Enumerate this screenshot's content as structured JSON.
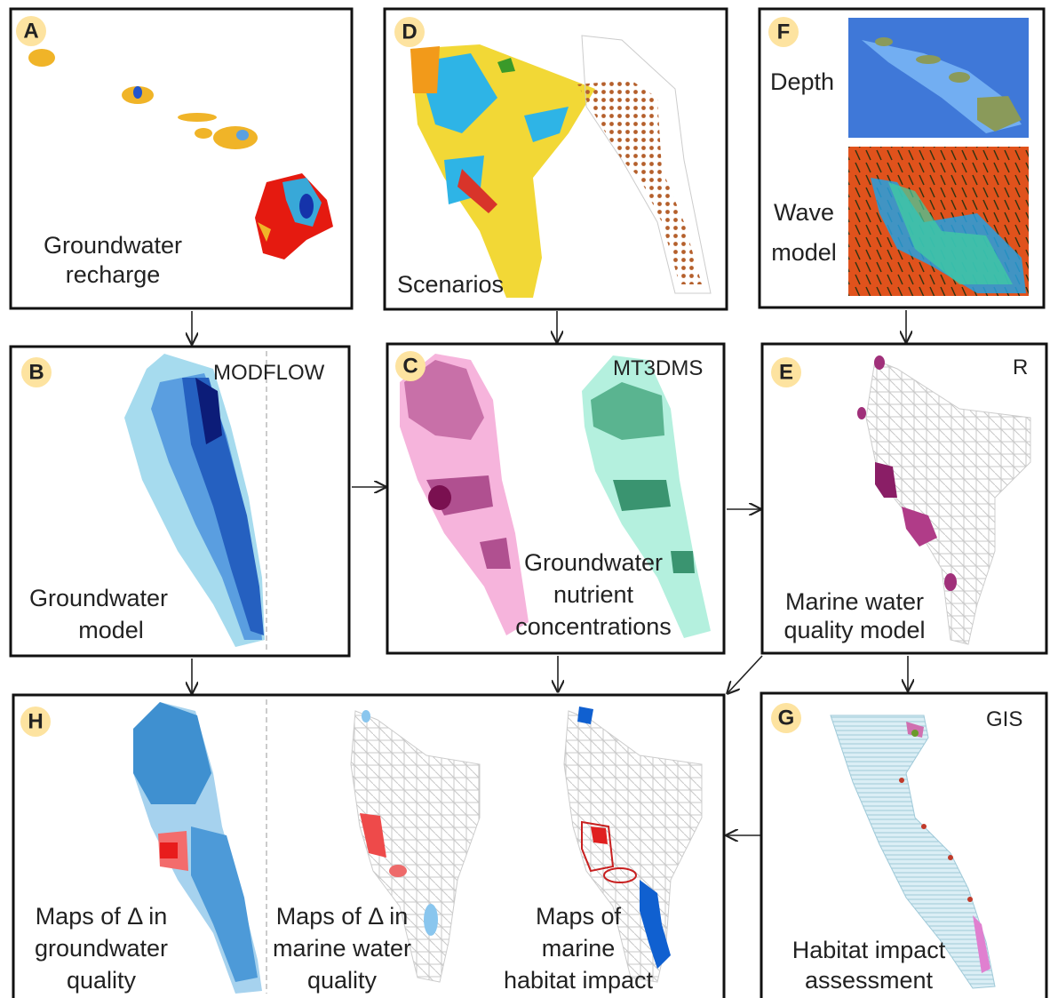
{
  "panel_a": {
    "letter": "A",
    "caption": [
      "Groundwater",
      "recharge"
    ]
  },
  "panel_d": {
    "letter": "D",
    "caption": [
      "Scenarios"
    ]
  },
  "panel_f": {
    "letter": "F",
    "depth_label": "Depth",
    "wave_label": [
      "Wave",
      "model"
    ]
  },
  "panel_b": {
    "letter": "B",
    "tool": "MODFLOW",
    "caption": [
      "Groundwater",
      "model"
    ]
  },
  "panel_c": {
    "letter": "C",
    "tool": "MT3DMS",
    "caption": [
      "Groundwater",
      "nutrient",
      "concentrations"
    ]
  },
  "panel_e": {
    "letter": "E",
    "tool": "R",
    "caption": [
      "Marine water",
      "quality model"
    ]
  },
  "panel_h": {
    "letter": "H",
    "maps": [
      [
        "Maps of Δ in",
        "groundwater",
        "quality"
      ],
      [
        "Maps of Δ in",
        "marine water",
        "quality"
      ],
      [
        "Maps of",
        "marine",
        "habitat impact"
      ]
    ]
  },
  "panel_g": {
    "letter": "G",
    "tool": "GIS",
    "caption": [
      "Habitat impact",
      "assessment"
    ]
  }
}
